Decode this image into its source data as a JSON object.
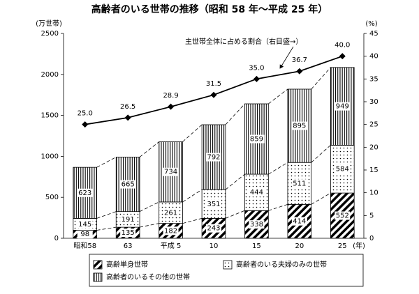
{
  "chart_data": {
    "type": "bar",
    "title": "高齢者のいる世帯の推移（昭和 58 年～平成 25 年）",
    "y_label": "(万世帯)",
    "y2_label": "(%)",
    "x_label": "(年)",
    "categories": [
      "昭和58",
      "63",
      "平成 5",
      "10",
      "15",
      "20",
      "25"
    ],
    "series": [
      {
        "name": "高齢単身世帯",
        "pattern": "diagonal",
        "color": "#000000",
        "values": [
          98,
          135,
          182,
          243,
          338,
          414,
          552
        ]
      },
      {
        "name": "高齢者のいる夫婦のみの世帯",
        "pattern": "dots",
        "color": "#000000",
        "values": [
          145,
          191,
          261,
          351,
          444,
          511,
          584
        ]
      },
      {
        "name": "高齢者のいるその他の世帯",
        "pattern": "vertical",
        "color": "#000000",
        "values": [
          623,
          665,
          734,
          792,
          859,
          895,
          949
        ]
      },
      {
        "name": "主世帯全体に占める割合（右目盛→）",
        "type": "line",
        "axis": "y2",
        "color": "#000000",
        "values": [
          25.0,
          26.5,
          28.9,
          31.5,
          35.0,
          36.7,
          40.0
        ],
        "value_labels": [
          "25.0",
          "26.5",
          "28.9",
          "31.5",
          "35.0",
          "36.7",
          "40.0"
        ]
      }
    ],
    "ylim": [
      0,
      2500
    ],
    "yticks": [
      0,
      500,
      1000,
      1500,
      2000,
      2500
    ],
    "y2lim": [
      0,
      45
    ],
    "y2ticks": [
      0,
      5,
      10,
      15,
      20,
      25,
      30,
      35,
      40,
      45
    ],
    "grid": false
  }
}
